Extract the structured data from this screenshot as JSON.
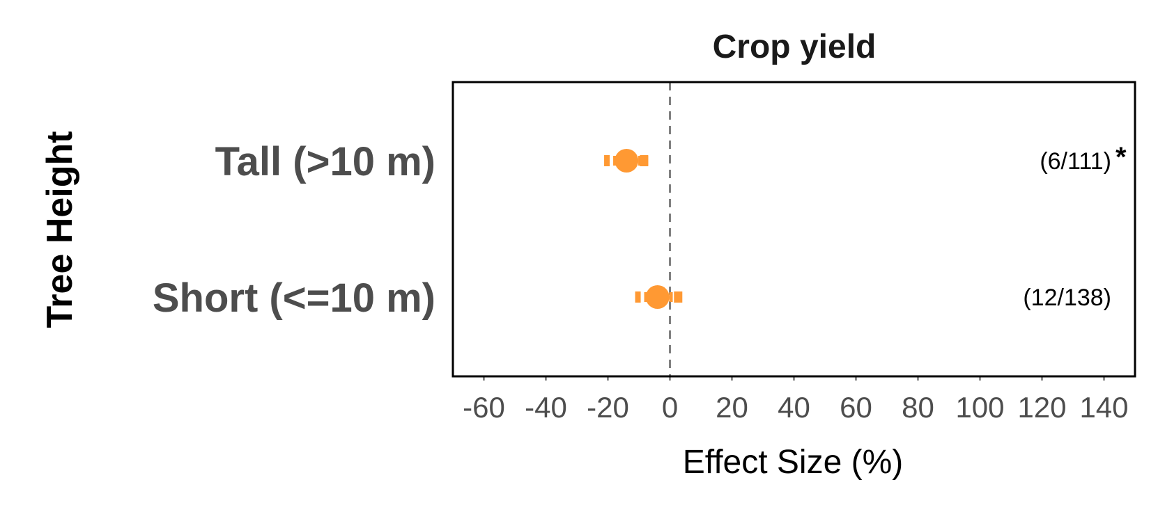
{
  "chart_data": {
    "type": "scatter",
    "title": "Crop yield",
    "xlabel": "Effect Size (%)",
    "ylabel": "Tree Height",
    "xlim": [
      -70,
      150
    ],
    "xticks": [
      -60,
      -40,
      -20,
      0,
      20,
      40,
      60,
      80,
      100,
      120,
      140
    ],
    "reference_line": 0,
    "grid": false,
    "point_color": "#FF9933",
    "categories": [
      {
        "label": "Tall (>10 m)",
        "estimate": -14,
        "ci_low": -21,
        "ci_high": -7,
        "annotation": "(6/111)",
        "significance": "*"
      },
      {
        "label": "Short (<=10 m)",
        "estimate": -4,
        "ci_low": -11,
        "ci_high": 4,
        "annotation": "(12/138)",
        "significance": ""
      }
    ]
  }
}
